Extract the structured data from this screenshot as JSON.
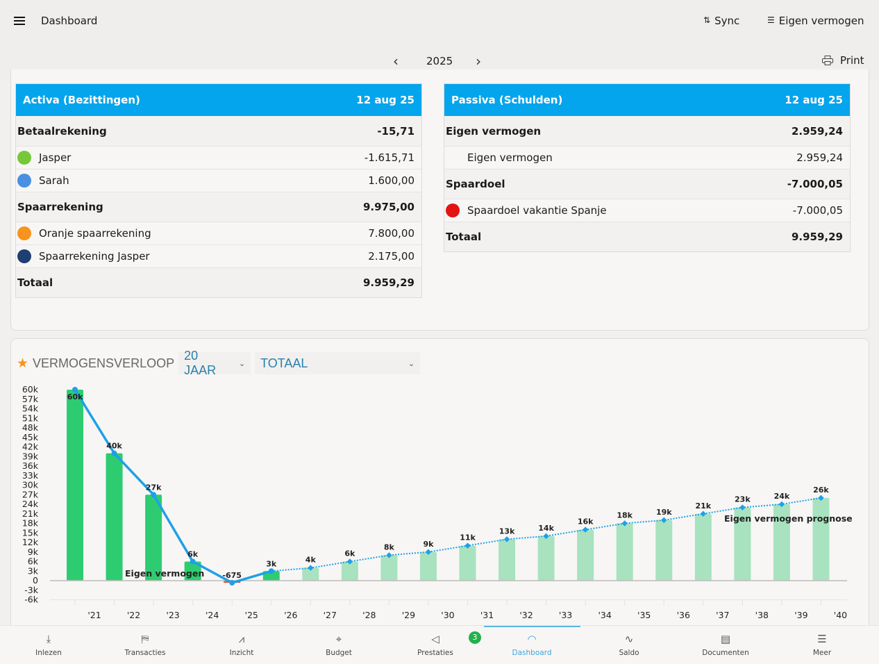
{
  "header": {
    "title": "Dashboard",
    "sync_label": "Sync",
    "view_label": "Eigen vermogen",
    "year": "2025",
    "print_label": "Print"
  },
  "activa": {
    "title": "Activa (Bezittingen)",
    "date": "12 aug 25",
    "groups": [
      {
        "label": "Betaalrekening",
        "value": "-15,71",
        "items": [
          {
            "label": "Jasper",
            "value": "-1.615,71",
            "color": "#76c83a"
          },
          {
            "label": "Sarah",
            "value": "1.600,00",
            "color": "#4a90e2"
          }
        ]
      },
      {
        "label": "Spaarrekening",
        "value": "9.975,00",
        "items": [
          {
            "label": "Oranje spaarrekening",
            "value": "7.800,00",
            "color": "#f7941d"
          },
          {
            "label": "Spaarrekening Jasper",
            "value": "2.175,00",
            "color": "#1f3f73"
          }
        ]
      }
    ],
    "total_label": "Totaal",
    "total_value": "9.959,29"
  },
  "passiva": {
    "title": "Passiva (Schulden)",
    "date": "12 aug 25",
    "groups": [
      {
        "label": "Eigen vermogen",
        "value": "2.959,24",
        "items": [
          {
            "label": "Eigen vermogen",
            "value": "2.959,24",
            "color": null
          }
        ]
      },
      {
        "label": "Spaardoel",
        "value": "-7.000,05",
        "items": [
          {
            "label": "Spaardoel vakantie Spanje",
            "value": "-7.000,05",
            "color": "#e31414"
          }
        ]
      }
    ],
    "total_label": "Totaal",
    "total_value": "9.959,29"
  },
  "chart_section": {
    "title": "VERMOGENSVERLOOP",
    "period_select": "20 JAAR",
    "scope_select": "TOTAAL"
  },
  "chart_data": {
    "type": "bar",
    "title": "VERMOGENSVERLOOP",
    "x_tick_labels": [
      "'21",
      "'22",
      "'23",
      "'24",
      "'25",
      "'26",
      "'27",
      "'28",
      "'29",
      "'30",
      "'31",
      "'32",
      "'33",
      "'34",
      "'35",
      "'36",
      "'37",
      "'38",
      "'39",
      "'40"
    ],
    "y_tick_labels": [
      "60k",
      "57k",
      "54k",
      "51k",
      "48k",
      "45k",
      "42k",
      "39k",
      "36k",
      "33k",
      "30k",
      "27k",
      "24k",
      "21k",
      "18k",
      "15k",
      "12k",
      "9k",
      "6k",
      "3k",
      "0",
      "-3k",
      "-6k"
    ],
    "ylim": [
      -6000,
      60000
    ],
    "grid": false,
    "series": [
      {
        "name": "Eigen vermogen",
        "style": "solid line + bars",
        "color_line": "#1ea0e8",
        "color_bar": "#2ecc71",
        "color_bar_negative": "#e74c3c",
        "values": [
          60000,
          40000,
          27000,
          6000,
          -675,
          3000
        ],
        "labels": [
          "60k",
          "40k",
          "27k",
          "6k",
          "-675",
          "3k"
        ]
      },
      {
        "name": "Eigen vermogen prognose",
        "style": "dotted line + light bars",
        "color_line": "#1ea0e8",
        "color_bar": "#a8e2bf",
        "start_index": 5,
        "values": [
          3000,
          4000,
          6000,
          8000,
          9000,
          11000,
          13000,
          14000,
          16000,
          18000,
          19000,
          21000,
          23000,
          24000,
          26000
        ],
        "labels": [
          "3k",
          "4k",
          "6k",
          "8k",
          "9k",
          "11k",
          "13k",
          "14k",
          "16k",
          "18k",
          "19k",
          "21k",
          "23k",
          "24k",
          "26k"
        ]
      }
    ]
  },
  "bottom_nav": {
    "items": [
      {
        "label": "Inlezen",
        "icon": "download-icon",
        "glyph": "⤓"
      },
      {
        "label": "Transacties",
        "icon": "signpost-icon",
        "glyph": "⛿"
      },
      {
        "label": "Inzicht",
        "icon": "trend-icon",
        "glyph": "⩘"
      },
      {
        "label": "Budget",
        "icon": "target-icon",
        "glyph": "⌖"
      },
      {
        "label": "Prestaties",
        "icon": "megaphone-icon",
        "glyph": "◁"
      },
      {
        "label": "Dashboard",
        "icon": "gauge-icon",
        "glyph": "◠"
      },
      {
        "label": "Saldo",
        "icon": "pulse-icon",
        "glyph": "∿"
      },
      {
        "label": "Documenten",
        "icon": "archive-icon",
        "glyph": "▤"
      },
      {
        "label": "Meer",
        "icon": "menu-icon",
        "glyph": "☰"
      }
    ],
    "active": "Dashboard",
    "badge": "3"
  }
}
